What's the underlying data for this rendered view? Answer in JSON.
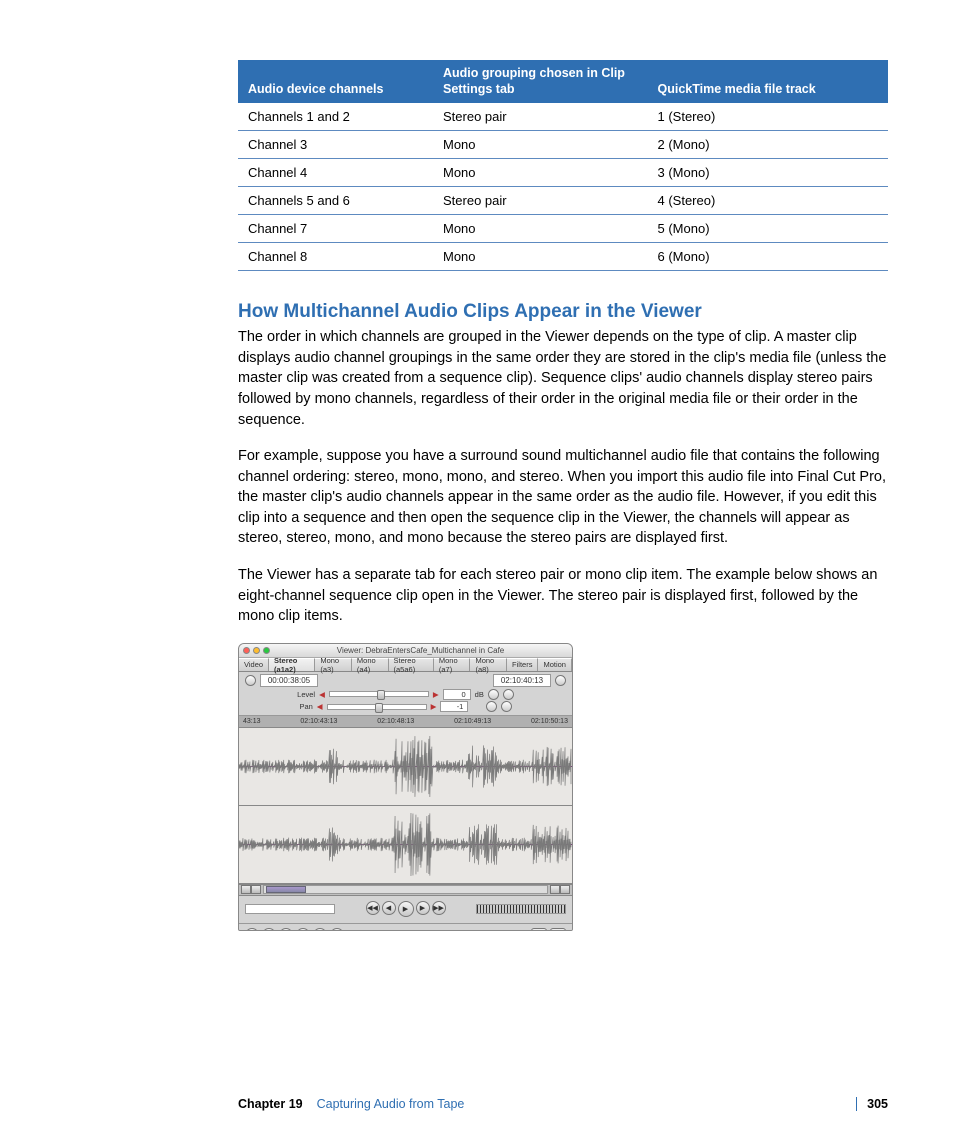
{
  "table": {
    "header_bg": "#2f6fb2",
    "header_fg": "#ffffff",
    "row_border": "#5d8ac0",
    "columns": [
      "Audio device channels",
      "Audio grouping chosen in Clip Settings tab",
      "QuickTime media file track"
    ],
    "rows": [
      [
        "Channels 1 and 2",
        "Stereo pair",
        "1 (Stereo)"
      ],
      [
        "Channel 3",
        "Mono",
        "2 (Mono)"
      ],
      [
        "Channel 4",
        "Mono",
        "3 (Mono)"
      ],
      [
        "Channels 5 and 6",
        "Stereo pair",
        "4 (Stereo)"
      ],
      [
        "Channel 7",
        "Mono",
        "5 (Mono)"
      ],
      [
        "Channel 8",
        "Mono",
        "6 (Mono)"
      ]
    ]
  },
  "heading": "How Multichannel Audio Clips Appear in the Viewer",
  "heading_color": "#2f6fb2",
  "para1": "The order in which channels are grouped in the Viewer depends on the type of clip. A master clip displays audio channel groupings in the same order they are stored in the clip's media file (unless the master clip was created from a sequence clip). Sequence clips' audio channels display stereo pairs followed by mono channels, regardless of their order in the original media file or their order in the sequence.",
  "para2": "For example, suppose you have a surround sound multichannel audio file that contains the following channel ordering: stereo, mono, mono, and stereo. When you import this audio file into Final Cut Pro, the master clip's audio channels appear in the same order as the audio file. However, if you edit this clip into a sequence and then open the sequence clip in the Viewer, the channels will appear as stereo, stereo, mono, and mono because the stereo pairs are displayed first.",
  "para3": "The Viewer has a separate tab for each stereo pair or mono clip item. The example below shows an eight-channel sequence clip open in the Viewer. The stereo pair is displayed first, followed by the mono clip items.",
  "viewer": {
    "title": "Viewer: DebraEntersCafe_Multichannel in Cafe",
    "tabs": [
      "Video",
      "Stereo (a1a2)",
      "Mono (a3)",
      "Mono (a4)",
      "Stereo (a5a6)",
      "Mono (a7)",
      "Mono (a8)",
      "Filters",
      "Motion"
    ],
    "active_tab_index": 1,
    "tc_left": "00:00:38:05",
    "tc_right": "02:10:40:13",
    "level_label": "Level",
    "level_value": "0",
    "level_unit": "dB",
    "pan_label": "Pan",
    "pan_value": "-1",
    "ruler": [
      "43:13",
      "02:10:43:13",
      "02:10:48:13",
      "02:10:49:13",
      "02:10:50:13"
    ],
    "waveform_color": "#7a7a7a",
    "waveform_bg": "#e9e7e4",
    "midline_color": "#7a2d7a"
  },
  "footer": {
    "chapter_label": "Chapter 19",
    "chapter_title": "Capturing Audio from Tape",
    "page": "305"
  }
}
